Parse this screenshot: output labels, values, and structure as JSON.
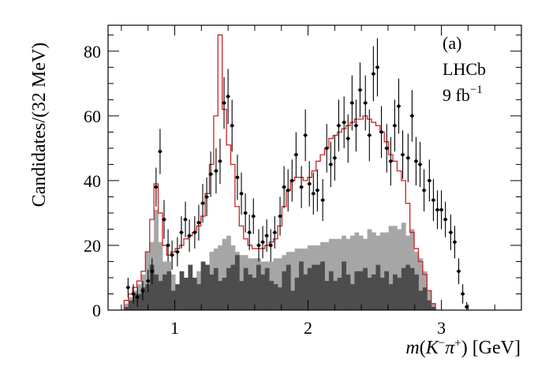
{
  "chart_data": {
    "type": "histogram",
    "xlabel_parts": {
      "m": "m",
      "open": "(",
      "K": "K",
      "minus": "−",
      "pi": "π",
      "plus": "+",
      "close": ")",
      "unit": " [GeV]"
    },
    "ylabel": "Candidates/(32 MeV)",
    "xlim": [
      0.5,
      3.6
    ],
    "ylim": [
      0,
      88
    ],
    "xticks": [
      1,
      2,
      3
    ],
    "xtick_labels": [
      "1",
      "2",
      "3"
    ],
    "yticks": [
      0,
      20,
      40,
      60,
      80
    ],
    "ytick_labels": [
      "0",
      "20",
      "40",
      "60",
      "80"
    ],
    "annotations": {
      "panel": "(a)",
      "experiment": "LHCb",
      "lumi_value": "9 fb",
      "lumi_exp": "−1"
    },
    "bin_start": 0.62,
    "bin_width": 0.032,
    "colors": {
      "fit": "#cc2222",
      "component_light": "#a6a6a6",
      "component_dark": "#4d4d4d",
      "data": "#000000"
    },
    "series": [
      {
        "role": "fit_total",
        "values": [
          3,
          5,
          7,
          9,
          12,
          18,
          28,
          39,
          30,
          20,
          17,
          18,
          19,
          20,
          22,
          23,
          24,
          26,
          29,
          36,
          45,
          60,
          85,
          62,
          51,
          45,
          32,
          26,
          22,
          20,
          19,
          19,
          19,
          20,
          21,
          22,
          26,
          32,
          37,
          40,
          41,
          41,
          40,
          41,
          43,
          46,
          48,
          50,
          53,
          54,
          55,
          56,
          57,
          58,
          59,
          59,
          60,
          59,
          58,
          57,
          55,
          52,
          48,
          46,
          43,
          40,
          33,
          24,
          19,
          15,
          11,
          6,
          2
        ]
      },
      {
        "role": "component_light",
        "values": [
          2,
          4,
          6,
          8,
          11,
          18,
          21,
          31,
          21,
          15,
          15,
          11,
          6,
          7,
          8,
          9,
          10,
          12,
          13,
          14,
          18,
          19,
          20,
          22,
          23,
          20,
          18,
          17,
          17,
          16,
          16,
          16,
          15,
          15,
          15,
          16,
          16,
          17,
          18,
          18,
          19,
          19,
          19,
          20,
          20,
          20,
          21,
          21,
          22,
          22,
          22,
          23,
          22,
          23,
          24,
          23,
          22,
          25,
          24,
          23,
          24,
          24,
          26,
          26,
          25,
          27,
          23,
          25,
          18,
          16,
          12,
          6,
          2
        ]
      },
      {
        "role": "component_dark",
        "values": [
          1,
          3,
          5,
          5,
          7,
          8,
          14,
          11,
          9,
          11,
          12,
          6,
          8,
          12,
          10,
          14,
          10,
          8,
          15,
          14,
          11,
          13,
          9,
          10,
          13,
          14,
          17,
          9,
          13,
          11,
          10,
          14,
          11,
          13,
          9,
          8,
          7,
          12,
          14,
          6,
          10,
          15,
          11,
          13,
          14,
          14,
          15,
          9,
          12,
          9,
          10,
          15,
          11,
          8,
          12,
          12,
          13,
          10,
          11,
          14,
          10,
          12,
          8,
          11,
          10,
          13,
          14,
          13,
          11,
          6,
          7,
          3,
          1
        ]
      },
      {
        "role": "data",
        "points": [
          [
            0.65,
            7,
            3
          ],
          [
            0.69,
            5,
            3
          ],
          [
            0.72,
            4,
            3
          ],
          [
            0.76,
            6,
            3
          ],
          [
            0.8,
            9,
            3.5
          ],
          [
            0.83,
            12,
            4
          ],
          [
            0.86,
            38,
            6
          ],
          [
            0.89,
            49,
            7
          ],
          [
            0.92,
            28,
            6
          ],
          [
            0.95,
            20,
            5
          ],
          [
            0.98,
            17,
            4.5
          ],
          [
            1.02,
            18,
            4.5
          ],
          [
            1.05,
            24,
            5
          ],
          [
            1.08,
            28,
            5.5
          ],
          [
            1.11,
            23,
            5
          ],
          [
            1.15,
            24,
            5
          ],
          [
            1.18,
            27,
            5.5
          ],
          [
            1.21,
            33,
            6
          ],
          [
            1.24,
            35,
            6
          ],
          [
            1.27,
            42,
            7
          ],
          [
            1.31,
            43,
            7
          ],
          [
            1.34,
            46,
            7
          ],
          [
            1.37,
            64,
            8
          ],
          [
            1.4,
            66,
            8.5
          ],
          [
            1.43,
            57,
            8
          ],
          [
            1.47,
            41,
            7
          ],
          [
            1.5,
            36,
            6.5
          ],
          [
            1.53,
            30,
            6
          ],
          [
            1.56,
            24,
            5.5
          ],
          [
            1.59,
            29,
            5.5
          ],
          [
            1.63,
            20,
            5
          ],
          [
            1.66,
            21,
            5
          ],
          [
            1.69,
            23,
            5
          ],
          [
            1.72,
            20,
            5
          ],
          [
            1.75,
            24,
            5
          ],
          [
            1.79,
            29,
            6
          ],
          [
            1.82,
            38,
            6.5
          ],
          [
            1.85,
            37,
            6.5
          ],
          [
            1.88,
            40,
            6.5
          ],
          [
            1.91,
            48,
            7
          ],
          [
            1.95,
            38,
            6.5
          ],
          [
            1.98,
            54,
            8
          ],
          [
            2.01,
            39,
            7
          ],
          [
            2.04,
            36,
            6.5
          ],
          [
            2.07,
            37,
            6.5
          ],
          [
            2.11,
            34,
            6.5
          ],
          [
            2.14,
            50,
            7.5
          ],
          [
            2.17,
            45,
            7
          ],
          [
            2.2,
            47,
            7
          ],
          [
            2.23,
            57,
            8
          ],
          [
            2.27,
            58,
            8
          ],
          [
            2.3,
            53,
            7.5
          ],
          [
            2.33,
            64,
            8.5
          ],
          [
            2.36,
            57,
            8
          ],
          [
            2.39,
            68,
            8.5
          ],
          [
            2.43,
            64,
            8.5
          ],
          [
            2.46,
            54,
            8
          ],
          [
            2.49,
            73,
            8.5
          ],
          [
            2.52,
            75,
            9
          ],
          [
            2.55,
            55,
            8
          ],
          [
            2.59,
            50,
            7.5
          ],
          [
            2.62,
            46,
            7.5
          ],
          [
            2.65,
            57,
            8
          ],
          [
            2.68,
            63,
            8.5
          ],
          [
            2.71,
            48,
            7.5
          ],
          [
            2.75,
            47,
            7.5
          ],
          [
            2.78,
            60,
            8
          ],
          [
            2.81,
            46,
            7.5
          ],
          [
            2.84,
            45,
            7
          ],
          [
            2.87,
            37,
            6.5
          ],
          [
            2.91,
            40,
            6.5
          ],
          [
            2.94,
            34,
            6.5
          ],
          [
            2.97,
            31,
            6
          ],
          [
            3.0,
            31,
            6
          ],
          [
            3.03,
            28,
            5.5
          ],
          [
            3.07,
            24,
            5.5
          ],
          [
            3.1,
            21,
            5
          ],
          [
            3.13,
            12,
            4
          ],
          [
            3.16,
            5,
            3
          ],
          [
            3.19,
            1,
            1.5
          ]
        ]
      }
    ]
  }
}
